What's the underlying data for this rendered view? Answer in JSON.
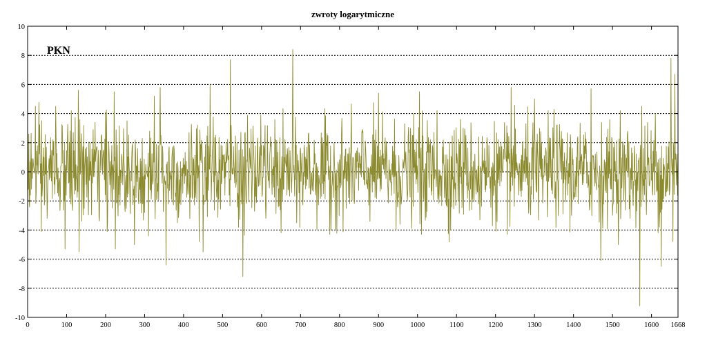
{
  "chart_data": {
    "type": "line",
    "title": "zwroty logarytmiczne",
    "annotation": "PKN",
    "xlabel": "",
    "ylabel": "",
    "xlim": [
      0,
      1668
    ],
    "ylim": [
      -10,
      10
    ],
    "x_ticks": [
      0,
      100,
      200,
      300,
      400,
      500,
      600,
      700,
      800,
      900,
      1000,
      1100,
      1200,
      1300,
      1400,
      1500,
      1600,
      1668
    ],
    "y_ticks": [
      -10,
      -8,
      -6,
      -4,
      -2,
      0,
      2,
      4,
      6,
      8,
      10
    ],
    "grid": "horizontal dotted",
    "line_color": "#8c8a2e",
    "series": [
      {
        "n_points": 1668,
        "noise_scale": 1.6,
        "points": [
          [
            0,
            3.8
          ],
          [
            20,
            4.5
          ],
          [
            35,
            -4.1
          ],
          [
            50,
            -3.2
          ],
          [
            72,
            4.5
          ],
          [
            96,
            -5.3
          ],
          [
            112,
            4.2
          ],
          [
            130,
            5.6
          ],
          [
            132,
            -5.5
          ],
          [
            168,
            2.9
          ],
          [
            200,
            4.1
          ],
          [
            205,
            -3.5
          ],
          [
            222,
            5.5
          ],
          [
            225,
            -5.3
          ],
          [
            255,
            3.5
          ],
          [
            300,
            -2.8
          ],
          [
            310,
            -4.4
          ],
          [
            325,
            5.2
          ],
          [
            340,
            5.8
          ],
          [
            355,
            -6.4
          ],
          [
            384,
            -3.5
          ],
          [
            440,
            -4.8
          ],
          [
            450,
            -5.5
          ],
          [
            468,
            6.0
          ],
          [
            520,
            7.7
          ],
          [
            552,
            -7.2
          ],
          [
            598,
            3.9
          ],
          [
            650,
            -4.2
          ],
          [
            680,
            8.4
          ],
          [
            690,
            -3.5
          ],
          [
            720,
            2.6
          ],
          [
            775,
            -4.3
          ],
          [
            860,
            2.8
          ],
          [
            900,
            5.4
          ],
          [
            945,
            -4.0
          ],
          [
            1005,
            5.5
          ],
          [
            1010,
            -4.3
          ],
          [
            1050,
            4.2
          ],
          [
            1085,
            -4.0
          ],
          [
            1110,
            3.6
          ],
          [
            1160,
            -3.3
          ],
          [
            1230,
            -4.3
          ],
          [
            1240,
            5.8
          ],
          [
            1300,
            5.0
          ],
          [
            1310,
            -3.3
          ],
          [
            1350,
            4.3
          ],
          [
            1395,
            -3.0
          ],
          [
            1445,
            5.7
          ],
          [
            1470,
            -6.1
          ],
          [
            1520,
            4.2
          ],
          [
            1545,
            -3.2
          ],
          [
            1570,
            -9.2
          ],
          [
            1575,
            4.5
          ],
          [
            1610,
            4.0
          ],
          [
            1625,
            -6.5
          ],
          [
            1650,
            7.8
          ],
          [
            1655,
            -4.8
          ],
          [
            1660,
            6.7
          ],
          [
            1668,
            1.0
          ]
        ]
      }
    ]
  }
}
